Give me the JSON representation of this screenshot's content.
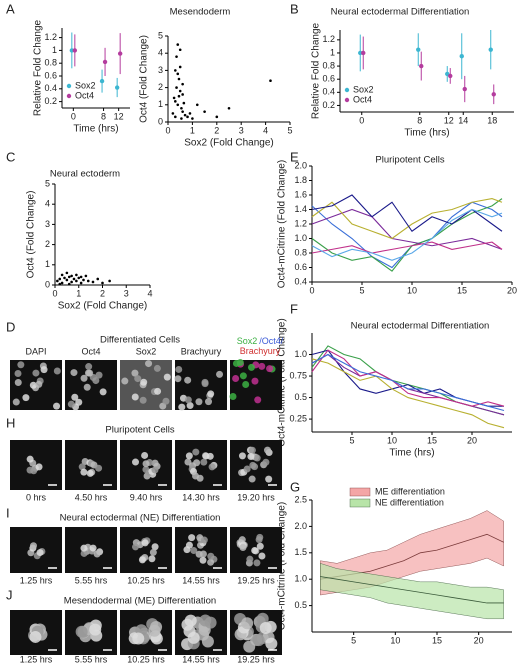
{
  "chart_data": [
    {
      "type": "errorbar",
      "panel": "A",
      "title": "Mesendoderm",
      "xlabel": "Time (hrs)",
      "ylabel": "Relative Fold Change",
      "x": [
        0,
        8,
        12
      ],
      "xlim": [
        -3,
        15
      ],
      "xticks": [
        0,
        8,
        12
      ],
      "ylim": [
        0.1,
        1.35
      ],
      "yticks": [
        0.2,
        0.4,
        0.6,
        0.8,
        1,
        1.2
      ],
      "legend": "lower left",
      "series": [
        {
          "name": "Sox2",
          "color": "#3cb6d1",
          "values": [
            1.0,
            0.52,
            0.42
          ],
          "errors": [
            0.28,
            0.18,
            0.15
          ]
        },
        {
          "name": "Oct4",
          "color": "#b43c9e",
          "values": [
            1.0,
            0.82,
            0.95
          ],
          "errors": [
            0.25,
            0.22,
            0.32
          ]
        }
      ]
    },
    {
      "type": "scatter",
      "xlabel": "Sox2 (Fold Change)",
      "ylabel": "Oct4 (Fold Change)",
      "xlim": [
        0,
        5
      ],
      "xticks": [
        0,
        1,
        2,
        3,
        4,
        5
      ],
      "ylim": [
        0,
        5
      ],
      "yticks": [
        0,
        1,
        2,
        3,
        4,
        5
      ],
      "series": [
        {
          "color": "#000000",
          "x": [
            0.2,
            0.3,
            0.35,
            0.4,
            0.45,
            0.5,
            0.55,
            0.6,
            0.3,
            0.4,
            0.5,
            0.6,
            0.7,
            0.35,
            0.45,
            0.25,
            0.55,
            0.65,
            0.8,
            0.9,
            1.0,
            1.2,
            1.5,
            2.0,
            2.5,
            4.2,
            0.4,
            0.5,
            0.3,
            0.6
          ],
          "y": [
            0.5,
            1.2,
            2.0,
            2.8,
            1.5,
            3.2,
            0.8,
            2.2,
            0.3,
            1.0,
            1.8,
            0.6,
            0.4,
            3.8,
            2.5,
            1.4,
            0.2,
            1.1,
            0.3,
            0.5,
            0.2,
            1.0,
            0.6,
            0.3,
            0.8,
            2.4,
            4.5,
            4.2,
            3.0,
            1.6
          ]
        }
      ]
    },
    {
      "type": "errorbar",
      "panel": "B",
      "title": "Neural ectodermal Differentiation",
      "xlabel": "Time (hrs)",
      "ylabel": "Relative Fold Change",
      "x": [
        0,
        8,
        12,
        14,
        18
      ],
      "xlim": [
        -3,
        21
      ],
      "xticks": [
        0,
        8,
        12,
        14,
        18
      ],
      "ylim": [
        0.1,
        1.35
      ],
      "yticks": [
        0.2,
        0.4,
        0.6,
        0.8,
        1,
        1.2
      ],
      "legend": "lower left",
      "series": [
        {
          "name": "Sox2",
          "color": "#3cb6d1",
          "values": [
            1.0,
            1.05,
            0.68,
            0.95,
            1.05
          ],
          "errors": [
            0.28,
            0.25,
            0.12,
            0.35,
            0.3
          ]
        },
        {
          "name": "Oct4",
          "color": "#b43c9e",
          "values": [
            1.0,
            0.8,
            0.65,
            0.45,
            0.37
          ],
          "errors": [
            0.25,
            0.22,
            0.12,
            0.2,
            0.15
          ]
        }
      ]
    },
    {
      "type": "scatter",
      "panel": "C",
      "title": "Neural ectoderm",
      "xlabel": "Sox2 (Fold Change)",
      "ylabel": "Oct4 (Fold Change)",
      "xlim": [
        0,
        4
      ],
      "xticks": [
        0,
        1,
        2,
        3,
        4
      ],
      "ylim": [
        0,
        5
      ],
      "yticks": [
        0,
        1,
        2,
        3,
        4,
        5
      ],
      "series": [
        {
          "color": "#000000",
          "x": [
            0.1,
            0.2,
            0.3,
            0.4,
            0.5,
            0.6,
            0.7,
            0.8,
            0.9,
            1.0,
            1.1,
            1.2,
            1.4,
            1.6,
            1.8,
            2.0,
            2.3,
            0.3,
            0.5,
            0.7,
            0.9,
            1.1,
            0.2,
            0.6,
            1.3
          ],
          "y": [
            0.2,
            0.3,
            0.1,
            0.35,
            0.25,
            0.4,
            0.15,
            0.3,
            0.2,
            0.35,
            0.1,
            0.25,
            0.2,
            0.15,
            0.3,
            0.1,
            0.2,
            0.5,
            0.6,
            0.45,
            0.5,
            0.4,
            0.05,
            0.05,
            0.45
          ]
        }
      ]
    },
    {
      "type": "line",
      "panel": "E",
      "title": "Pluripotent Cells",
      "ylabel": "Oct4-mCitrine (Fold Change)",
      "x": [
        0,
        2,
        4,
        6,
        8,
        10,
        12,
        14,
        16,
        18,
        19
      ],
      "xlim": [
        0,
        20
      ],
      "xticks": [
        0,
        5,
        10,
        15,
        20
      ],
      "ylim": [
        0.4,
        2.0
      ],
      "yticks": [
        0.4,
        0.6,
        0.8,
        {
          "value": 1,
          "label": "1.0"
        },
        1.2,
        1.4,
        1.6,
        1.8,
        {
          "value": 2,
          "label": "2.0"
        }
      ],
      "series": [
        {
          "color": "#3a6fd8",
          "values": [
            1.45,
            1.2,
            1.0,
            0.75,
            0.6,
            0.9,
            1.0,
            1.3,
            1.5,
            1.4,
            1.3
          ]
        },
        {
          "color": "#3aa04a",
          "values": [
            1.0,
            0.8,
            0.7,
            0.75,
            0.55,
            0.9,
            1.0,
            1.2,
            1.35,
            1.45,
            1.55
          ]
        },
        {
          "color": "#7a2a9a",
          "values": [
            1.2,
            1.3,
            1.4,
            1.3,
            1.0,
            0.95,
            0.9,
            0.95,
            1.0,
            0.9,
            0.85
          ]
        },
        {
          "color": "#b8b030",
          "values": [
            1.3,
            1.5,
            1.2,
            1.1,
            1.0,
            1.2,
            1.35,
            1.4,
            1.5,
            1.55,
            1.5
          ]
        },
        {
          "color": "#1a1a8a",
          "values": [
            1.4,
            1.45,
            1.6,
            1.3,
            1.5,
            1.1,
            1.3,
            1.2,
            1.4,
            1.2,
            1.1
          ]
        },
        {
          "color": "#c0308a",
          "values": [
            0.8,
            0.85,
            0.9,
            0.8,
            0.85,
            0.9,
            0.95,
            0.85,
            0.9,
            0.95,
            0.85
          ]
        },
        {
          "color": "#5aa8e8",
          "values": [
            0.9,
            0.75,
            0.85,
            0.8,
            0.7,
            0.8,
            1.0,
            1.25,
            1.4,
            1.3,
            1.35
          ]
        }
      ]
    },
    {
      "type": "line",
      "panel": "F",
      "title": "Neural ectodermal Differentiation",
      "xlabel": "Time (hrs)",
      "ylabel": "Oct4-mCitrine (Fold Change)",
      "x": [
        0,
        2,
        4,
        6,
        8,
        10,
        12,
        14,
        16,
        18,
        20,
        22,
        24
      ],
      "xlim": [
        0,
        25
      ],
      "xticks": [
        5,
        10,
        15,
        20
      ],
      "ylim": [
        0.1,
        1.25
      ],
      "yticks": [
        0.25,
        0.5,
        0.75,
        {
          "value": 1,
          "label": "1.0"
        }
      ],
      "series": [
        {
          "color": "#3aa04a",
          "values": [
            0.85,
            1.1,
            1.0,
            0.95,
            0.8,
            0.7,
            0.65,
            0.6,
            0.55,
            0.45,
            0.4,
            0.35,
            0.3
          ]
        },
        {
          "color": "#1a1a8a",
          "values": [
            1.0,
            1.05,
            0.8,
            0.6,
            0.55,
            0.6,
            0.65,
            0.55,
            0.6,
            0.5,
            0.45,
            0.4,
            0.4
          ]
        },
        {
          "color": "#7a2a9a",
          "values": [
            0.9,
            1.0,
            0.85,
            0.75,
            0.8,
            0.7,
            0.6,
            0.55,
            0.5,
            0.45,
            0.4,
            0.35,
            0.3
          ]
        },
        {
          "color": "#b8b030",
          "values": [
            0.95,
            0.9,
            0.8,
            0.7,
            0.75,
            0.6,
            0.5,
            0.45,
            0.4,
            0.35,
            0.3,
            0.2,
            0.15
          ]
        },
        {
          "color": "#c0308a",
          "values": [
            0.8,
            1.05,
            0.95,
            0.75,
            0.8,
            0.7,
            0.55,
            0.5,
            0.5,
            0.45,
            0.4,
            0.45,
            0.4
          ]
        },
        {
          "color": "#3a6fd8",
          "values": [
            0.9,
            1.0,
            0.9,
            0.8,
            0.75,
            0.7,
            0.6,
            0.6,
            0.55,
            0.5,
            0.45,
            0.4,
            0.35
          ]
        }
      ]
    },
    {
      "type": "area",
      "panel": "G",
      "ylabel": "Oct4-mCitrine (Fold Change)",
      "x": [
        1,
        3,
        5,
        7,
        9,
        11,
        13,
        15,
        17,
        19,
        21,
        23
      ],
      "xlim": [
        0,
        24
      ],
      "xticks": [
        5,
        10,
        15,
        20
      ],
      "ylim": [
        0,
        2.5
      ],
      "yticks": [
        0.5,
        {
          "value": 1,
          "label": "1.0"
        },
        1.5,
        {
          "value": 2,
          "label": "2.0"
        },
        2.5
      ],
      "legend": "upper center",
      "series": [
        {
          "name": "ME differentiation",
          "color": "#f4a6a6",
          "line_color": "#7a3a3a",
          "values": [
            1.0,
            1.05,
            1.1,
            1.15,
            1.25,
            1.35,
            1.5,
            1.55,
            1.65,
            1.75,
            1.85,
            1.7
          ],
          "lower": [
            0.7,
            0.75,
            0.8,
            0.85,
            0.95,
            1.05,
            1.15,
            1.2,
            1.25,
            1.3,
            1.4,
            1.25
          ],
          "upper": [
            1.35,
            1.3,
            1.4,
            1.5,
            1.55,
            1.7,
            1.85,
            1.95,
            2.05,
            2.15,
            2.3,
            2.1
          ]
        },
        {
          "name": "NE differentiation",
          "color": "#b8e4a8",
          "line_color": "#3a5a3a",
          "values": [
            1.05,
            1.0,
            0.95,
            0.9,
            0.85,
            0.8,
            0.75,
            0.7,
            0.65,
            0.6,
            0.55,
            0.55
          ],
          "lower": [
            0.8,
            0.75,
            0.7,
            0.65,
            0.55,
            0.5,
            0.45,
            0.4,
            0.35,
            0.3,
            0.25,
            0.25
          ],
          "upper": [
            1.3,
            1.2,
            1.15,
            1.1,
            1.05,
            1.0,
            0.95,
            0.95,
            0.9,
            0.85,
            0.85,
            0.8
          ]
        }
      ]
    }
  ],
  "image_panels": [
    {
      "panel": "D",
      "title": "Differentiated Cells",
      "labels": [
        "DAPI",
        "Oct4",
        "Sox2",
        "Brachyury"
      ],
      "merge_label": [
        "Sox2",
        "/Oct4/",
        "Brachyury"
      ]
    },
    {
      "panel": "H",
      "title": "Pluripotent Cells",
      "captions": [
        "0 hrs",
        "4.50 hrs",
        "9.40 hrs",
        "14.30 hrs",
        "19.20 hrs"
      ]
    },
    {
      "panel": "I",
      "title": "Neural ectodermal (NE) Differentiation",
      "captions": [
        "1.25 hrs",
        "5.55 hrs",
        "10.25 hrs",
        "14.55 hrs",
        "19.25 hrs"
      ]
    },
    {
      "panel": "J",
      "title": "Mesendodermal (ME) Differentiation",
      "captions": [
        "1.25 hrs",
        "5.55 hrs",
        "10.25 hrs",
        "14.55 hrs",
        "19.25 hrs"
      ]
    }
  ]
}
